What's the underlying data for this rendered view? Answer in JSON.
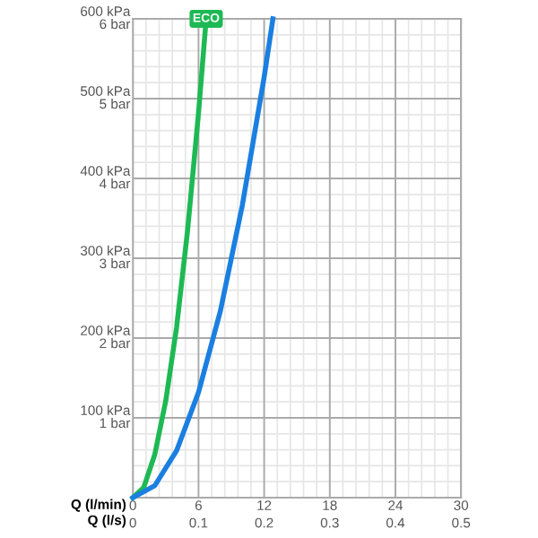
{
  "chart_data": {
    "type": "line",
    "xlabel": "Q (l/min)",
    "x2label": "Q (l/s)",
    "xlim": [
      0,
      30
    ],
    "ylim": [
      0,
      600
    ],
    "x2lim": [
      0,
      0.5
    ],
    "y2lim": [
      0,
      6
    ],
    "xticks": [
      0,
      6,
      12,
      18,
      24,
      30
    ],
    "x2ticks": [
      0,
      0.1,
      0.2,
      0.3,
      0.4,
      0.5
    ],
    "yticks": [
      {
        "value": 100,
        "label": "100 kPa"
      },
      {
        "value": 200,
        "label": "200 kPa"
      },
      {
        "value": 300,
        "label": "300 kPa"
      },
      {
        "value": 400,
        "label": "400 kPa"
      },
      {
        "value": 500,
        "label": "500 kPa"
      },
      {
        "value": 600,
        "label": "600 kPa"
      }
    ],
    "y2ticks": [
      {
        "value": 1,
        "label": "1 bar"
      },
      {
        "value": 2,
        "label": "2 bar"
      },
      {
        "value": 3,
        "label": "3 bar"
      },
      {
        "value": 4,
        "label": "4 bar"
      },
      {
        "value": 5,
        "label": "5 bar"
      },
      {
        "value": 6,
        "label": "6 bar"
      }
    ],
    "grid": true,
    "marker": "none",
    "line_style": "solid",
    "series": [
      {
        "color": "#1db954",
        "x": [
          0,
          1,
          2,
          3,
          4,
          5,
          6,
          6.7
        ],
        "values": [
          0,
          13,
          54,
          121,
          214,
          335,
          482,
          600
        ]
      },
      {
        "color": "#1a7fe0",
        "x": [
          0,
          2,
          4,
          6,
          8,
          10,
          12,
          12.8
        ],
        "values": [
          0,
          15,
          59,
          132,
          234,
          366,
          527,
          600
        ]
      }
    ],
    "annotations": [
      {
        "text": "ECO",
        "x": 6.7,
        "y": 600
      }
    ]
  }
}
